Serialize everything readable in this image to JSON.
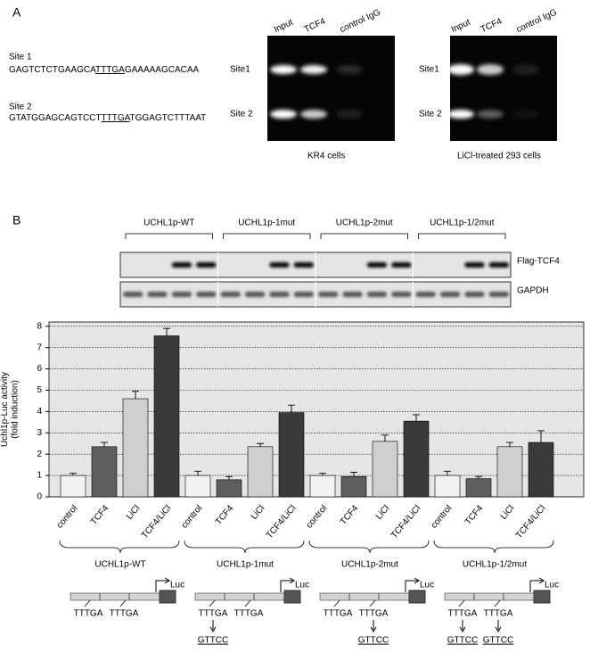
{
  "panel_a": {
    "label": "A",
    "sequences": [
      {
        "name": "Site 1",
        "parts": [
          "GAGTCTCTGAAGCA",
          "TTTGA",
          "GAAAAAGCACAA"
        ]
      },
      {
        "name": "Site 2",
        "parts": [
          "GTATGGAGCAGTCCT",
          "TTTGA",
          "TGGAGTCTTTAAT"
        ]
      }
    ],
    "gels": [
      {
        "lanes": [
          "Input",
          "TCF4",
          "control IgG"
        ],
        "rows": [
          "Site1",
          "Site 2"
        ],
        "caption": "KR4 cells"
      },
      {
        "lanes": [
          "Input",
          "TCF4",
          "control IgG"
        ],
        "rows": [
          "Site1",
          "Site 2"
        ],
        "caption": "LiCl-treated 293 cells"
      }
    ]
  },
  "panel_b": {
    "label": "B",
    "blot_rows": [
      "Flag-TCF4",
      "GAPDH"
    ],
    "reporter": "Luc",
    "constructs": [
      {
        "sites": [
          {
            "label": "TTTGA"
          },
          {
            "label": "TTTGA"
          }
        ]
      },
      {
        "sites": [
          {
            "label": "TTTGA",
            "mutant": "GTTCC"
          },
          {
            "label": "TTTGA"
          }
        ]
      },
      {
        "sites": [
          {
            "label": "TTTGA"
          },
          {
            "label": "TTTGA",
            "mutant": "GTTCC"
          }
        ]
      },
      {
        "sites": [
          {
            "label": "TTTGA",
            "mutant": "GTTCC"
          },
          {
            "label": "TTTGA",
            "mutant": "GTTCC"
          }
        ]
      }
    ]
  },
  "chart_data": {
    "type": "bar",
    "y_label": [
      "Uchl1p-Luc activity",
      "(fold induction)"
    ],
    "categories": [
      "UCHL1p-WT",
      "UCHL1p-1mut",
      "UCHL1p-2mut",
      "UCHL1p-1/2mut"
    ],
    "series": [
      {
        "name": "control",
        "color": "#f2f2f2",
        "values": [
          1,
          1,
          1,
          1
        ],
        "errors": [
          0.1,
          0.2,
          0.1,
          0.2
        ]
      },
      {
        "name": "TCF4",
        "color": "#5e5e5e",
        "values": [
          2.35,
          0.8,
          0.95,
          0.85
        ],
        "errors": [
          0.2,
          0.15,
          0.2,
          0.1
        ]
      },
      {
        "name": "LiCl",
        "color": "#cfcfcf",
        "values": [
          4.6,
          2.35,
          2.6,
          2.35
        ],
        "errors": [
          0.35,
          0.15,
          0.3,
          0.2
        ]
      },
      {
        "name": "TCF4/LiCl",
        "color": "#3a3a3a",
        "values": [
          7.55,
          3.95,
          3.55,
          2.55
        ],
        "errors": [
          0.35,
          0.35,
          0.3,
          0.55
        ]
      }
    ],
    "ylim": [
      0,
      8.2
    ],
    "yticks": [
      0,
      1,
      2,
      3,
      4,
      5,
      6,
      7,
      8
    ],
    "grid": true
  }
}
